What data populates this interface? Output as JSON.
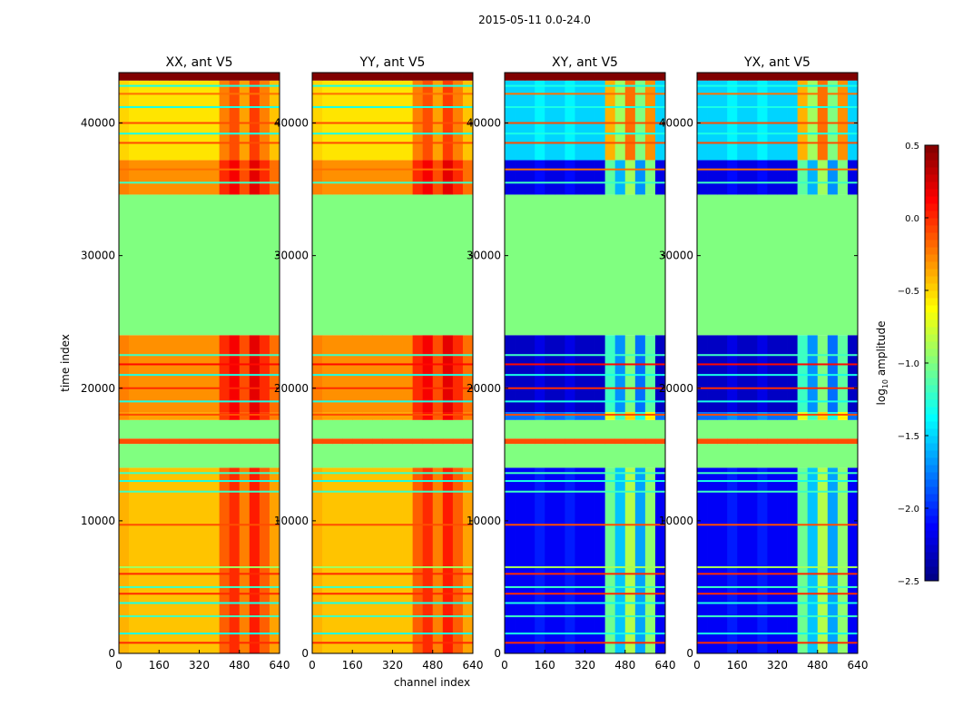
{
  "chart_data": {
    "type": "heatmap",
    "title": "2015-05-11 0.0-24.0",
    "xlabel": "channel index",
    "ylabel": "time index",
    "xlim": [
      0,
      640
    ],
    "ylim": [
      0,
      43800
    ],
    "xticks": [
      "0",
      "160",
      "320",
      "480",
      "640"
    ],
    "xtick_values": [
      0,
      160,
      320,
      480,
      640
    ],
    "yticks": [
      "0",
      "10000",
      "20000",
      "30000",
      "40000"
    ],
    "ytick_values": [
      0,
      10000,
      20000,
      30000,
      40000
    ],
    "colorbar": {
      "label_prefix": "log",
      "label_sub": "10",
      "label_suffix": " amplitude",
      "colormap": "jet",
      "range": [
        -2.5,
        0.5
      ],
      "ticks": [
        "0.5",
        "0.0",
        "−0.5",
        "−1.0",
        "−1.5",
        "−2.0",
        "−2.5"
      ],
      "tick_values": [
        0.5,
        0,
        -0.5,
        -1,
        -1.5,
        -2,
        -2.5
      ]
    },
    "flag_value": -1.0,
    "panels": [
      {
        "title": "XX, ant V5",
        "kind": "parallel"
      },
      {
        "title": "YY, ant V5",
        "kind": "parallel"
      },
      {
        "title": "XY, ant V5",
        "kind": "cross"
      },
      {
        "title": "YX, ant V5",
        "kind": "cross"
      }
    ],
    "time_bands": [
      {
        "t": [
          0,
          14000
        ],
        "parallel": -0.45,
        "cross": -2.15,
        "active": true
      },
      {
        "t": [
          14000,
          15800
        ],
        "parallel": -1.0,
        "cross": -1.0,
        "active": false
      },
      {
        "t": [
          15800,
          16200
        ],
        "parallel": -0.1,
        "cross": -0.1,
        "active": false
      },
      {
        "t": [
          16200,
          17600
        ],
        "parallel": -1.0,
        "cross": -1.0,
        "active": false
      },
      {
        "t": [
          17600,
          18200
        ],
        "parallel": -0.35,
        "cross": -1.8,
        "active": true
      },
      {
        "t": [
          18200,
          24000
        ],
        "parallel": -0.3,
        "cross": -2.3,
        "active": true
      },
      {
        "t": [
          24000,
          34600
        ],
        "parallel": -1.0,
        "cross": -1.0,
        "active": false
      },
      {
        "t": [
          34600,
          37200
        ],
        "parallel": -0.3,
        "cross": -2.2,
        "active": true
      },
      {
        "t": [
          37200,
          43200
        ],
        "parallel": -0.55,
        "cross": -1.5,
        "active": true
      },
      {
        "t": [
          43200,
          43800
        ],
        "parallel": 0.5,
        "cross": 0.5,
        "active": false
      }
    ],
    "channel_boost": {
      "parallel": [
        0.05,
        0,
        0,
        0,
        0,
        0,
        0,
        0,
        0,
        0,
        0.3,
        0.45,
        0.2,
        0.5,
        0.3,
        0.1
      ],
      "cross": [
        0,
        0,
        0,
        0.1,
        0,
        0,
        0.1,
        0,
        0,
        0,
        1.1,
        0.6,
        1.3,
        0.5,
        1.2,
        0
      ]
    },
    "stripes": [
      {
        "t": 800,
        "value": 0.0
      },
      {
        "t": 1500,
        "value": -1.3
      },
      {
        "t": 2800,
        "value": -1.2
      },
      {
        "t": 3800,
        "value": -1.3
      },
      {
        "t": 4500,
        "value": 0.0
      },
      {
        "t": 5000,
        "value": -1.2
      },
      {
        "t": 6000,
        "value": 0.0
      },
      {
        "t": 6500,
        "value": -0.9
      },
      {
        "t": 9700,
        "value": -0.1
      },
      {
        "t": 12200,
        "value": -1.2
      },
      {
        "t": 13000,
        "value": -1.3
      },
      {
        "t": 13600,
        "value": -1.2
      },
      {
        "t": 18000,
        "value": -0.1
      },
      {
        "t": 19000,
        "value": -1.3
      },
      {
        "t": 20000,
        "value": 0.0
      },
      {
        "t": 21000,
        "value": -1.3
      },
      {
        "t": 21800,
        "value": 0.1
      },
      {
        "t": 22500,
        "value": -1.2
      },
      {
        "t": 35500,
        "value": -1.2
      },
      {
        "t": 36500,
        "value": -0.2
      },
      {
        "t": 38500,
        "value": -0.1
      },
      {
        "t": 39200,
        "value": -1.3
      },
      {
        "t": 40000,
        "value": -0.1
      },
      {
        "t": 41200,
        "value": -1.3
      },
      {
        "t": 42200,
        "value": -0.2
      },
      {
        "t": 42800,
        "value": -1.3
      }
    ]
  }
}
